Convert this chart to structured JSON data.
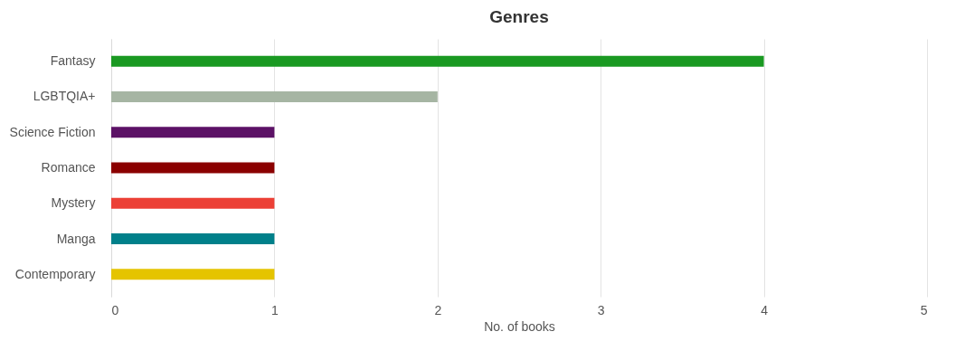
{
  "chart_data": {
    "type": "bar",
    "orientation": "horizontal",
    "title": "Genres",
    "xlabel": "No. of books",
    "categories": [
      "Fantasy",
      "LGBTQIA+",
      "Science Fiction",
      "Romance",
      "Mystery",
      "Manga",
      "Contemporary"
    ],
    "values": [
      4,
      2,
      1,
      1,
      1,
      1,
      1
    ],
    "colors": [
      "#1a9922",
      "#a6b5a3",
      "#5c1266",
      "#8b0000",
      "#ec4036",
      "#00808a",
      "#e5c400"
    ],
    "xlim": [
      0,
      5
    ],
    "xticks": [
      0,
      1,
      2,
      3,
      4,
      5
    ],
    "grid": "x"
  }
}
